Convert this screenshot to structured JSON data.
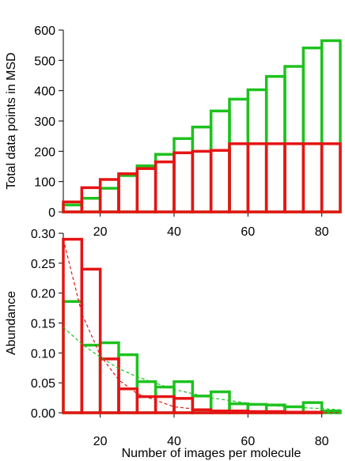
{
  "colors": {
    "green": "#1ec21e",
    "red": "#e61414",
    "axis": "#000000"
  },
  "chart_data": [
    {
      "type": "bar",
      "subtype": "step-histogram",
      "xlabel": "",
      "ylabel": "Total data points in MSD",
      "xlim": [
        10,
        85
      ],
      "ylim": [
        0,
        600
      ],
      "xticks": [
        20,
        40,
        60,
        80
      ],
      "yticks": [
        0,
        100,
        200,
        300,
        400,
        500,
        600
      ],
      "grid": false,
      "bin_starts": [
        10,
        15,
        20,
        25,
        30,
        35,
        40,
        45,
        50,
        55,
        60,
        65,
        70,
        75,
        80
      ],
      "bin_width": 5,
      "series": [
        {
          "color": "green",
          "values": [
            23,
            45,
            78,
            120,
            152,
            190,
            242,
            280,
            333,
            372,
            403,
            447,
            480,
            541,
            565
          ]
        },
        {
          "color": "red",
          "values": [
            33,
            80,
            107,
            126,
            143,
            165,
            195,
            200,
            203,
            225,
            225,
            225,
            225,
            225,
            225
          ]
        }
      ]
    },
    {
      "type": "bar",
      "subtype": "step-histogram",
      "xlabel": "Number of images per molecule",
      "ylabel": "Abundance",
      "xlim": [
        10,
        85
      ],
      "ylim": [
        0,
        0.3
      ],
      "xticks": [
        20,
        40,
        60,
        80
      ],
      "yticks": [
        "0.00",
        "0.05",
        "0.10",
        "0.15",
        "0.20",
        "0.25",
        "0.30"
      ],
      "grid": false,
      "bin_starts": [
        10,
        15,
        20,
        25,
        30,
        35,
        40,
        45,
        50,
        55,
        60,
        65,
        70,
        75,
        80
      ],
      "bin_width": 5,
      "series": [
        {
          "color": "green",
          "values": [
            0.186,
            0.113,
            0.117,
            0.097,
            0.052,
            0.043,
            0.052,
            0.028,
            0.035,
            0.015,
            0.014,
            0.013,
            0.01,
            0.017,
            0.003
          ]
        },
        {
          "color": "red",
          "values": [
            0.29,
            0.24,
            0.09,
            0.04,
            0.027,
            0.027,
            0.024,
            0.005,
            0.003,
            0.003,
            0.002,
            0.002,
            0.001,
            0.001,
            0.0
          ]
        }
      ],
      "fits": [
        {
          "color": "green",
          "style": "dashed",
          "x": [
            10,
            15,
            20,
            25,
            30,
            40,
            50,
            60,
            70,
            80,
            85
          ],
          "y": [
            0.143,
            0.115,
            0.093,
            0.074,
            0.06,
            0.039,
            0.025,
            0.016,
            0.01,
            0.007,
            0.005
          ]
        },
        {
          "color": "red",
          "style": "dashed",
          "x": [
            10,
            15,
            20,
            25,
            30,
            40,
            50,
            60,
            70,
            80,
            85
          ],
          "y": [
            0.29,
            0.166,
            0.096,
            0.055,
            0.032,
            0.01,
            0.003,
            0.001,
            0.0004,
            0.0002,
            0.0001
          ]
        }
      ]
    }
  ]
}
